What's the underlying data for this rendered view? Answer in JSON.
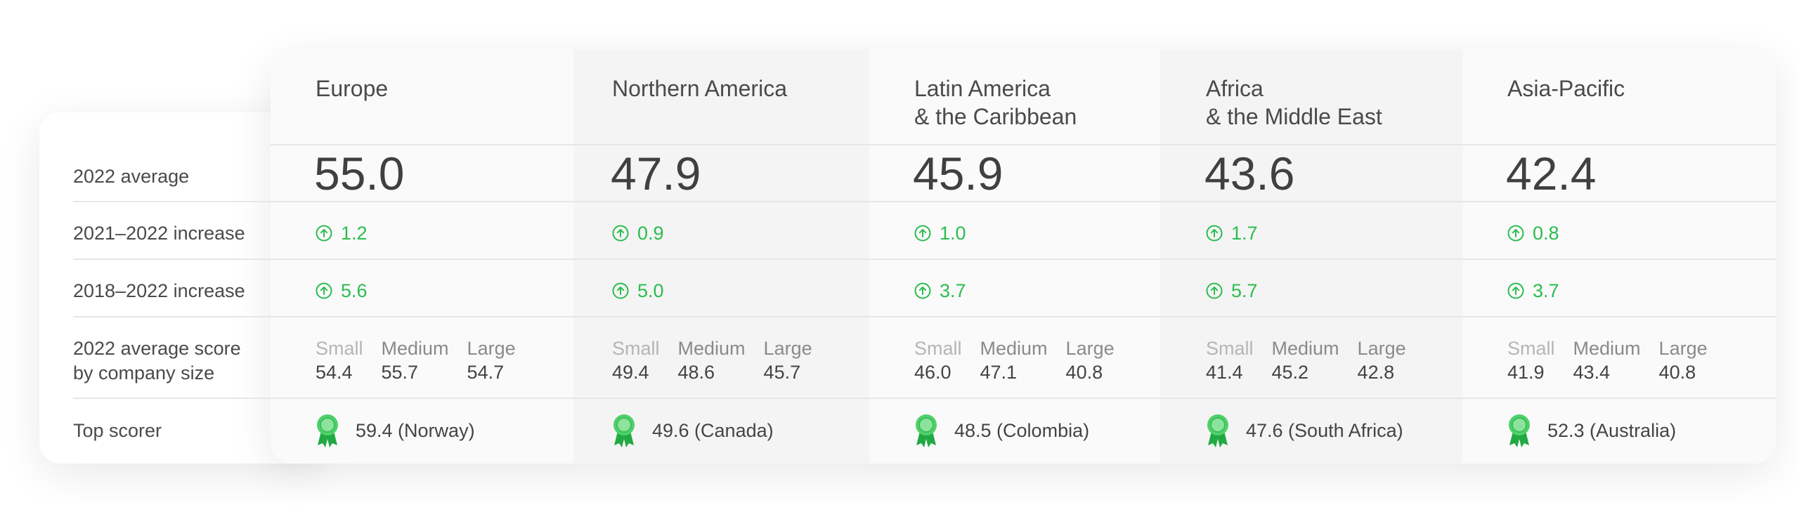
{
  "row_labels": {
    "avg": "2022 average",
    "inc_2122": "2021–2022 increase",
    "inc_1822": "2018–2022 increase",
    "size_line1": "2022 average score",
    "size_line2": "by company size",
    "top": "Top scorer"
  },
  "size_labels": {
    "small": "Small",
    "medium": "Medium",
    "large": "Large"
  },
  "regions": [
    {
      "name1": "Europe",
      "name2": "",
      "avg": "55.0",
      "inc_2122": "1.2",
      "inc_1822": "5.6",
      "small": "54.4",
      "medium": "55.7",
      "large": "54.7",
      "top": "59.4 (Norway)"
    },
    {
      "name1": "Northern America",
      "name2": "",
      "avg": "47.9",
      "inc_2122": "0.9",
      "inc_1822": "5.0",
      "small": "49.4",
      "medium": "48.6",
      "large": "45.7",
      "top": "49.6 (Canada)"
    },
    {
      "name1": "Latin America",
      "name2": "& the Caribbean",
      "avg": "45.9",
      "inc_2122": "1.0",
      "inc_1822": "3.7",
      "small": "46.0",
      "medium": "47.1",
      "large": "40.8",
      "top": "48.5 (Colombia)"
    },
    {
      "name1": "Africa",
      "name2": "& the Middle East",
      "avg": "43.6",
      "inc_2122": "1.7",
      "inc_1822": "5.7",
      "small": "41.4",
      "medium": "45.2",
      "large": "42.8",
      "top": "47.6 (South Africa)"
    },
    {
      "name1": "Asia-Pacific",
      "name2": "",
      "avg": "42.4",
      "inc_2122": "0.8",
      "inc_1822": "3.7",
      "small": "41.9",
      "medium": "43.4",
      "large": "40.8",
      "top": "52.3 (Australia)"
    }
  ],
  "colors": {
    "increase_green": "#2bbd4f",
    "ribbon_green": "#4fd06b"
  },
  "icons": {
    "increase": "arrow-up-circle-icon",
    "top_scorer": "award-ribbon-icon"
  }
}
